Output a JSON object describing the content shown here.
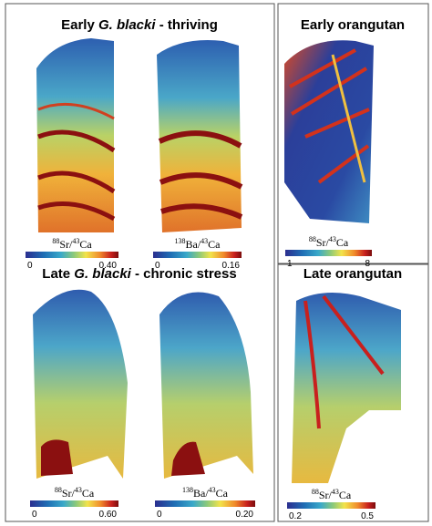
{
  "panels": [
    {
      "title": {
        "pre": "Early",
        "species": "G. blacki",
        "post": "- thriving"
      },
      "maps": [
        {
          "label": {
            "num_mass": "88",
            "num_el": "Sr",
            "sep": "/",
            "den_mass": "43",
            "den_el": "Ca"
          },
          "min": "0",
          "max": "0.40"
        },
        {
          "label": {
            "num_mass": "138",
            "num_el": "Ba",
            "sep": "/",
            "den_mass": "43",
            "den_el": "Ca"
          },
          "min": "0",
          "max": "0.16"
        }
      ]
    },
    {
      "title": {
        "text": "Early orangutan"
      },
      "maps": [
        {
          "label": {
            "num_mass": "88",
            "num_el": "Sr",
            "sep": "/",
            "den_mass": "43",
            "den_el": "Ca"
          },
          "min": "1",
          "max": "8"
        }
      ]
    },
    {
      "title": {
        "pre": "Late",
        "species": "G. blacki",
        "post": "- chronic stress"
      },
      "maps": [
        {
          "label": {
            "num_mass": "88",
            "num_el": "Sr",
            "sep": "/",
            "den_mass": "43",
            "den_el": "Ca"
          },
          "min": "0",
          "max": "0.60"
        },
        {
          "label": {
            "num_mass": "138",
            "num_el": "Ba",
            "sep": "/",
            "den_mass": "43",
            "den_el": "Ca"
          },
          "min": "0",
          "max": "0.20"
        }
      ]
    },
    {
      "title": {
        "text": "Late orangutan"
      },
      "maps": [
        {
          "label": {
            "num_mass": "88",
            "num_el": "Sr",
            "sep": "/",
            "den_mass": "43",
            "den_el": "Ca"
          },
          "min": "0.2",
          "max": "0.5"
        }
      ]
    }
  ]
}
